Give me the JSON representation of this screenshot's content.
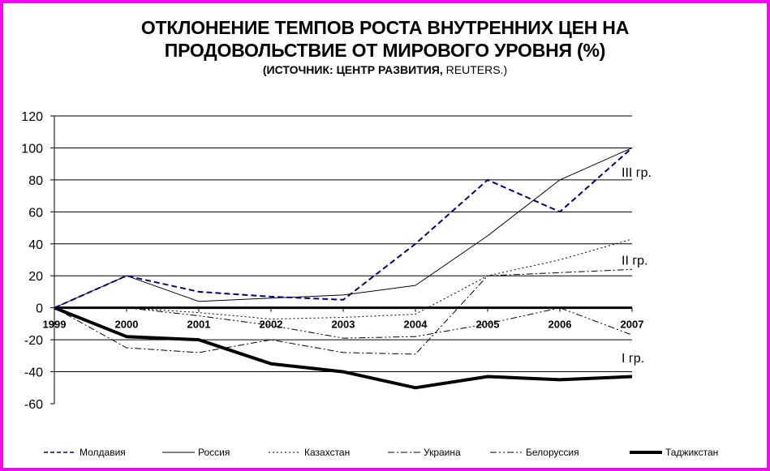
{
  "chart_data": {
    "type": "line",
    "title": "ОТКЛОНЕНИЕ ТЕМПОВ РОСТА ВНУТРЕННИХ ЦЕН НА\nПРОДОВОЛЬСТВИЕ ОТ МИРОВОГО УРОВНЯ (%)",
    "subtitle_bold": "(ИСТОЧНИК: ЦЕНТР РАЗВИТИЯ, ",
    "subtitle_normal": "REUTERS.)",
    "x": [
      "1999",
      "2000",
      "2001",
      "2002",
      "2003",
      "2004",
      "2005",
      "2006",
      "2007"
    ],
    "ylim": [
      -60,
      120
    ],
    "yticks": [
      -60,
      -40,
      -20,
      0,
      20,
      40,
      60,
      80,
      100,
      120
    ],
    "grid": true,
    "legend_position": "bottom",
    "series": [
      {
        "name": "Молдавия",
        "color": "#000080",
        "style": "dashed",
        "values": [
          0,
          20,
          10,
          7,
          5,
          40,
          80,
          60,
          100
        ]
      },
      {
        "name": "Россия",
        "color": "#000000",
        "style": "solid",
        "values": [
          0,
          20,
          4,
          6,
          8,
          14,
          45,
          80,
          100
        ]
      },
      {
        "name": "Казахстан",
        "color": "#000000",
        "style": "dotted",
        "values": [
          0,
          0,
          -3,
          -7,
          -6,
          -4,
          20,
          30,
          43
        ]
      },
      {
        "name": "Украина",
        "color": "#000000",
        "style": "dashdot",
        "values": [
          0,
          -25,
          -28,
          -20,
          -28,
          -29,
          20,
          22,
          24
        ]
      },
      {
        "name": "Белоруссия",
        "color": "#000000",
        "style": "dashdotdot",
        "values": [
          0,
          0,
          -5,
          -11,
          -19,
          -18,
          -10,
          0,
          -17
        ]
      },
      {
        "name": "Таджикстан",
        "color": "#000000",
        "style": "thick",
        "values": [
          0,
          -18,
          -20,
          -35,
          -40,
          -50,
          -43,
          -45,
          -43
        ]
      }
    ],
    "annotations": [
      {
        "text": "III гр.",
        "x": "2007",
        "y": 85
      },
      {
        "text": "II гр.",
        "x": "2007",
        "y": 30
      },
      {
        "text": "I гр.",
        "x": "2007",
        "y": -31
      }
    ]
  }
}
